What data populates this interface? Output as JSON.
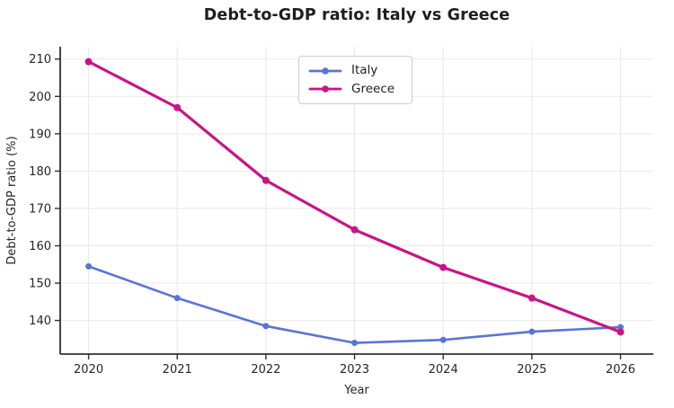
{
  "title": "Debt-to-GDP ratio: Italy vs Greece",
  "chart_data": {
    "type": "line",
    "x": [
      2020,
      2021,
      2022,
      2023,
      2024,
      2025,
      2026
    ],
    "series": [
      {
        "name": "Italy",
        "color": "#5B74D4",
        "line_width": 2.6,
        "marker": "circle",
        "marker_radius": 3.5,
        "values": [
          154.5,
          146.0,
          138.5,
          134.0,
          134.8,
          137.0,
          138.2
        ]
      },
      {
        "name": "Greece",
        "color": "#C71585",
        "line_width": 3.2,
        "marker": "circle",
        "marker_radius": 4.0,
        "values": [
          209.3,
          197.0,
          177.5,
          164.3,
          154.2,
          146.0,
          136.9
        ]
      }
    ],
    "xlabel": "Year",
    "ylabel": "Debt-to-GDP ratio (%)",
    "xticks": [
      2020,
      2021,
      2022,
      2023,
      2024,
      2025,
      2026
    ],
    "yticks": [
      140,
      150,
      160,
      170,
      180,
      190,
      200,
      210
    ],
    "xlim": [
      2019.68,
      2026.37
    ],
    "ylim": [
      131.0,
      213.3
    ],
    "grid": true,
    "legend_position": "upper center-left",
    "colors": {
      "grid": "#e8e8e8",
      "spine": "#303030",
      "text": "#262626",
      "background": "#ffffff",
      "legend_border": "#cccccc"
    }
  }
}
